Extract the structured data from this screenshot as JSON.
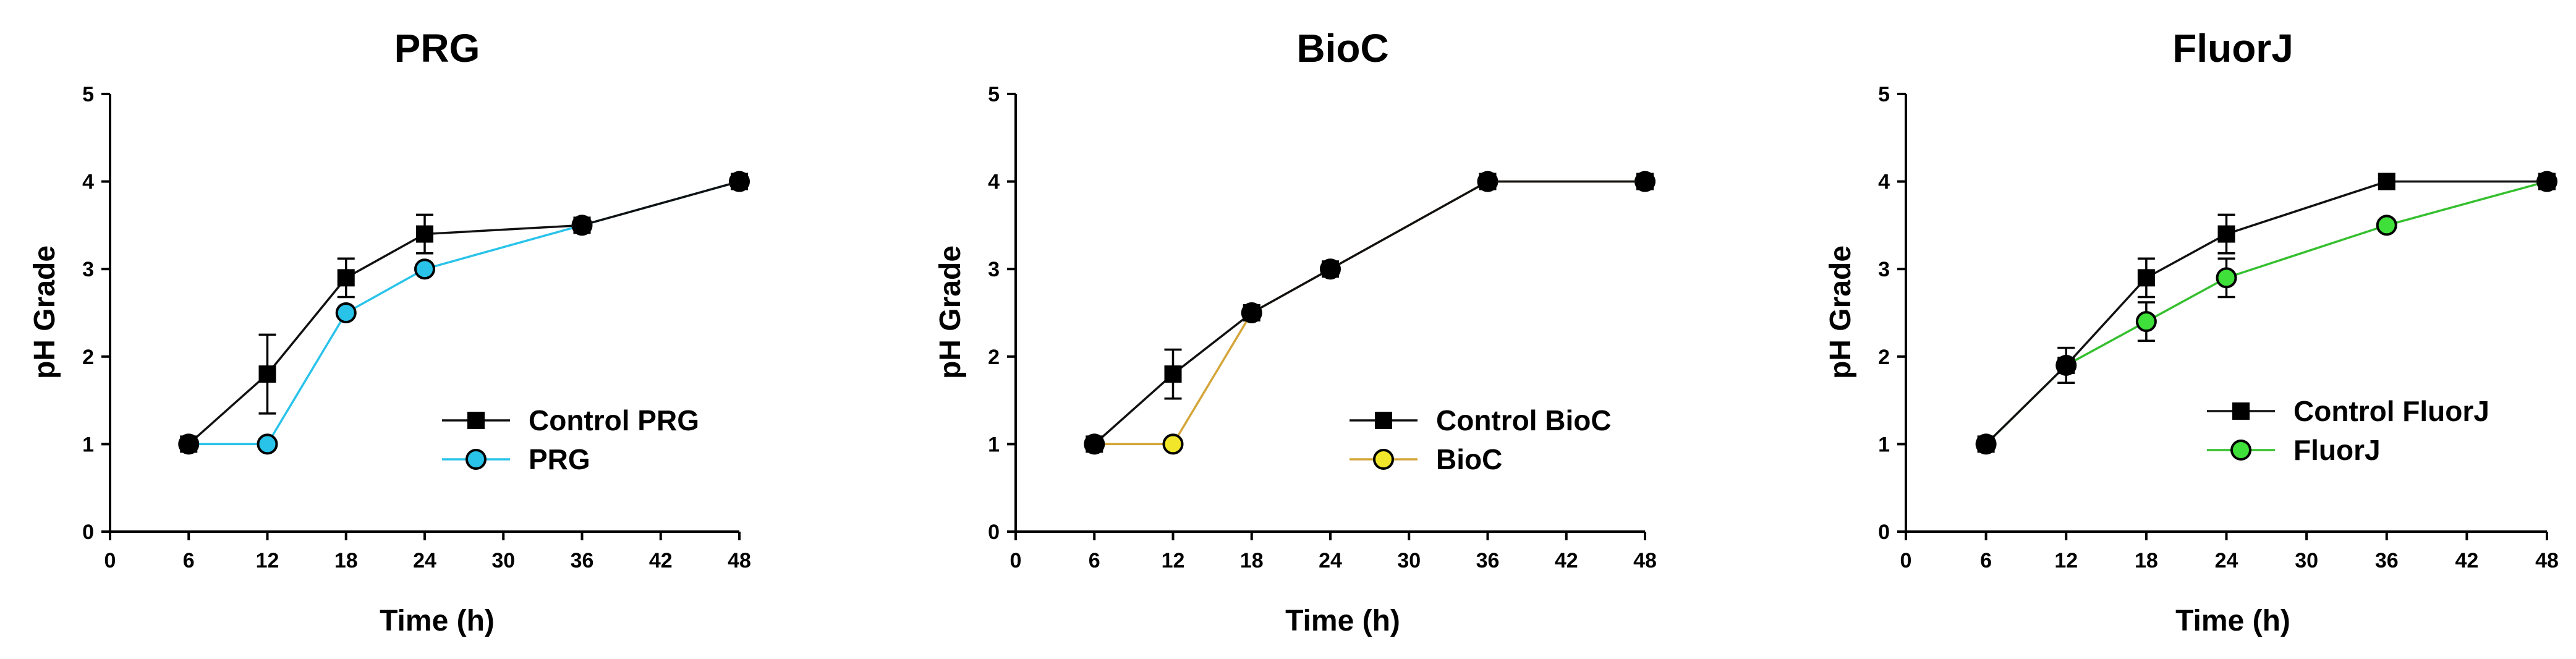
{
  "chart_data": [
    {
      "type": "line",
      "title": "PRG",
      "xlabel": "Time (h)",
      "ylabel": "pH Grade",
      "xlim": [
        0,
        48
      ],
      "ylim": [
        0,
        5
      ],
      "xticks": [
        0,
        6,
        12,
        18,
        24,
        30,
        36,
        42,
        48
      ],
      "yticks": [
        0,
        1,
        2,
        3,
        4,
        5
      ],
      "grid": false,
      "legend_position": "bottom-right",
      "series": [
        {
          "name": "Control PRG",
          "marker": "square",
          "color": "#000000",
          "line_color": "#111111",
          "x": [
            6,
            12,
            18,
            24,
            36,
            48
          ],
          "values": [
            1.0,
            1.8,
            2.9,
            3.4,
            3.5,
            4.0
          ],
          "error": [
            0,
            0.45,
            0.22,
            0.22,
            0,
            0
          ]
        },
        {
          "name": "PRG",
          "marker": "circle",
          "color": "#29c3ea",
          "line_color": "#29c3ea",
          "x": [
            6,
            12,
            18,
            24,
            36,
            48
          ],
          "values": [
            1.0,
            1.0,
            2.5,
            3.0,
            3.5,
            4.0
          ],
          "error": [
            0,
            0,
            0,
            0,
            0,
            0
          ]
        }
      ]
    },
    {
      "type": "line",
      "title": "BioC",
      "xlabel": "Time (h)",
      "ylabel": "pH Grade",
      "xlim": [
        0,
        48
      ],
      "ylim": [
        0,
        5
      ],
      "xticks": [
        0,
        6,
        12,
        18,
        24,
        30,
        36,
        42,
        48
      ],
      "yticks": [
        0,
        1,
        2,
        3,
        4,
        5
      ],
      "grid": false,
      "legend_position": "bottom-right",
      "series": [
        {
          "name": "Control BioC",
          "marker": "square",
          "color": "#000000",
          "line_color": "#111111",
          "x": [
            6,
            12,
            18,
            24,
            36,
            48
          ],
          "values": [
            1.0,
            1.8,
            2.5,
            3.0,
            4.0,
            4.0
          ],
          "error": [
            0,
            0.28,
            0,
            0,
            0,
            0
          ]
        },
        {
          "name": "BioC",
          "marker": "circle",
          "color": "#f2e62a",
          "line_color": "#d4a53a",
          "x": [
            6,
            12,
            18,
            24,
            36,
            48
          ],
          "values": [
            1.0,
            1.0,
            2.5,
            3.0,
            4.0,
            4.0
          ],
          "error": [
            0,
            0,
            0,
            0,
            0,
            0
          ]
        }
      ]
    },
    {
      "type": "line",
      "title": "FluorJ",
      "xlabel": "Time (h)",
      "ylabel": "pH Grade",
      "xlim": [
        0,
        48
      ],
      "ylim": [
        0,
        5
      ],
      "xticks": [
        0,
        6,
        12,
        18,
        24,
        30,
        36,
        42,
        48
      ],
      "yticks": [
        0,
        1,
        2,
        3,
        4,
        5
      ],
      "grid": false,
      "legend_position": "bottom-right",
      "series": [
        {
          "name": "Control FluorJ",
          "marker": "square",
          "color": "#000000",
          "line_color": "#111111",
          "x": [
            6,
            12,
            18,
            24,
            36,
            48
          ],
          "values": [
            1.0,
            1.9,
            2.9,
            3.4,
            4.0,
            4.0
          ],
          "error": [
            0,
            0.2,
            0.22,
            0.22,
            0,
            0
          ]
        },
        {
          "name": "FluorJ",
          "marker": "circle",
          "color": "#3fe03a",
          "line_color": "#35c02f",
          "x": [
            6,
            12,
            18,
            24,
            36,
            48
          ],
          "values": [
            1.0,
            1.9,
            2.4,
            2.9,
            3.5,
            4.0
          ],
          "error": [
            0,
            0,
            0.22,
            0.22,
            0,
            0
          ]
        }
      ]
    }
  ]
}
